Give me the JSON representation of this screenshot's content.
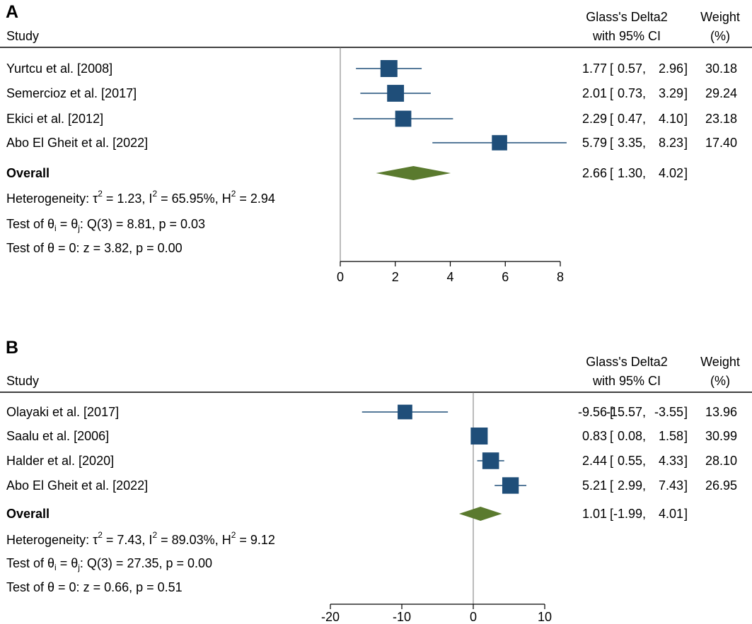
{
  "chart_data": [
    {
      "type": "forest",
      "panel_label": "A",
      "header": {
        "study": "Study",
        "effect_line1": "Glass's Delta2",
        "effect_line2": "with 95% CI",
        "weight_line1": "Weight",
        "weight_line2": "(%)"
      },
      "studies": [
        {
          "name": "Yurtcu et al. [2008]",
          "estimate": 1.77,
          "ci_low": 0.57,
          "ci_high": 2.96,
          "weight": 30.18,
          "est_text": "1.77",
          "lo_text": "0.57",
          "hi_text": "2.96",
          "weight_text": "30.18"
        },
        {
          "name": "Semercioz et al. [2017]",
          "estimate": 2.01,
          "ci_low": 0.73,
          "ci_high": 3.29,
          "weight": 29.24,
          "est_text": "2.01",
          "lo_text": "0.73",
          "hi_text": "3.29",
          "weight_text": "29.24"
        },
        {
          "name": "Ekici et al. [2012]",
          "estimate": 2.29,
          "ci_low": 0.47,
          "ci_high": 4.1,
          "weight": 23.18,
          "est_text": "2.29",
          "lo_text": "0.47",
          "hi_text": "4.10",
          "weight_text": "23.18"
        },
        {
          "name": "Abo El Gheit et al. [2022]",
          "estimate": 5.79,
          "ci_low": 3.35,
          "ci_high": 8.23,
          "weight": 17.4,
          "est_text": "5.79",
          "lo_text": "3.35",
          "hi_text": "8.23",
          "weight_text": "17.40"
        }
      ],
      "overall": {
        "name": "Overall",
        "estimate": 2.66,
        "ci_low": 1.3,
        "ci_high": 4.02,
        "est_text": "2.66",
        "lo_text": "1.30",
        "hi_text": "4.02"
      },
      "heterogeneity": {
        "tau2": "1.23",
        "I2": "65.95%",
        "H2": "2.94"
      },
      "test_thetas": {
        "q_df": "3",
        "Q": "8.81",
        "p": "0.03"
      },
      "test_zero": {
        "z": "3.82",
        "p": "0.00"
      },
      "xlim": [
        0,
        8
      ],
      "ticks": [
        0,
        2,
        4,
        6,
        8
      ],
      "null_line": 0
    },
    {
      "type": "forest",
      "panel_label": "B",
      "header": {
        "study": "Study",
        "effect_line1": "Glass's Delta2",
        "effect_line2": "with 95% CI",
        "weight_line1": "Weight",
        "weight_line2": "(%)"
      },
      "studies": [
        {
          "name": "Olayaki et al. [2017]",
          "estimate": -9.56,
          "ci_low": -15.57,
          "ci_high": -3.55,
          "weight": 13.96,
          "est_text": "-9.56",
          "lo_text": "-15.57",
          "hi_text": "-3.55",
          "weight_text": "13.96"
        },
        {
          "name": "Saalu et al. [2006]",
          "estimate": 0.83,
          "ci_low": 0.08,
          "ci_high": 1.58,
          "weight": 30.99,
          "est_text": "0.83",
          "lo_text": "0.08",
          "hi_text": "1.58",
          "weight_text": "30.99"
        },
        {
          "name": "Halder et al. [2020]",
          "estimate": 2.44,
          "ci_low": 0.55,
          "ci_high": 4.33,
          "weight": 28.1,
          "est_text": "2.44",
          "lo_text": "0.55",
          "hi_text": "4.33",
          "weight_text": "28.10"
        },
        {
          "name": "Abo El Gheit et al. [2022]",
          "estimate": 5.21,
          "ci_low": 2.99,
          "ci_high": 7.43,
          "weight": 26.95,
          "est_text": "5.21",
          "lo_text": "2.99",
          "hi_text": "7.43",
          "weight_text": "26.95"
        }
      ],
      "overall": {
        "name": "Overall",
        "estimate": 1.01,
        "ci_low": -1.99,
        "ci_high": 4.01,
        "est_text": "1.01",
        "lo_text": "-1.99",
        "hi_text": "4.01"
      },
      "heterogeneity": {
        "tau2": "7.43",
        "I2": "89.03%",
        "H2": "9.12"
      },
      "test_thetas": {
        "q_df": "3",
        "Q": "27.35",
        "p": "0.00"
      },
      "test_zero": {
        "z": "0.66",
        "p": "0.51"
      },
      "xlim": [
        -20,
        10
      ],
      "ticks": [
        -20,
        -10,
        0,
        10
      ],
      "null_line": 0
    }
  ],
  "colors": {
    "marker": "#1f4e79",
    "diamond": "#5a7a2e",
    "line": "#000000"
  }
}
